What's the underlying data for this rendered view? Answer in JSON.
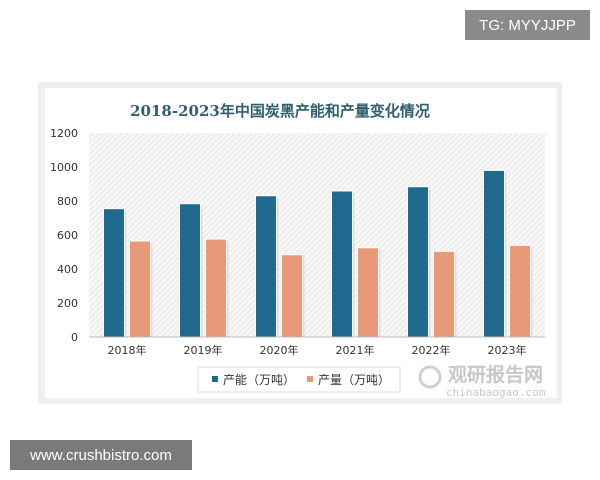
{
  "overlay": {
    "tg_label": "TG: MYYJJPP",
    "site_label": "www.crushbistro.com"
  },
  "watermark": {
    "name": "观研报告网",
    "domain": "chinabaogao.com"
  },
  "chart_data": {
    "type": "bar",
    "title": "2018-2023年中国炭黑产能和产量变化情况",
    "categories": [
      "2018年",
      "2019年",
      "2020年",
      "2021年",
      "2022年",
      "2023年"
    ],
    "series": [
      {
        "name": "产能（万吨）",
        "color": "#1f6a8e",
        "values": [
          755,
          784,
          831,
          859,
          884,
          980
        ]
      },
      {
        "name": "产量（万吨）",
        "color": "#e89a78",
        "values": [
          565,
          576,
          484,
          525,
          504,
          539
        ]
      }
    ],
    "ylim": [
      0,
      1200
    ],
    "yticks": [
      "0",
      "200",
      "400",
      "600",
      "800",
      "1000",
      "1200"
    ],
    "grid": false,
    "legend": "bottom"
  }
}
